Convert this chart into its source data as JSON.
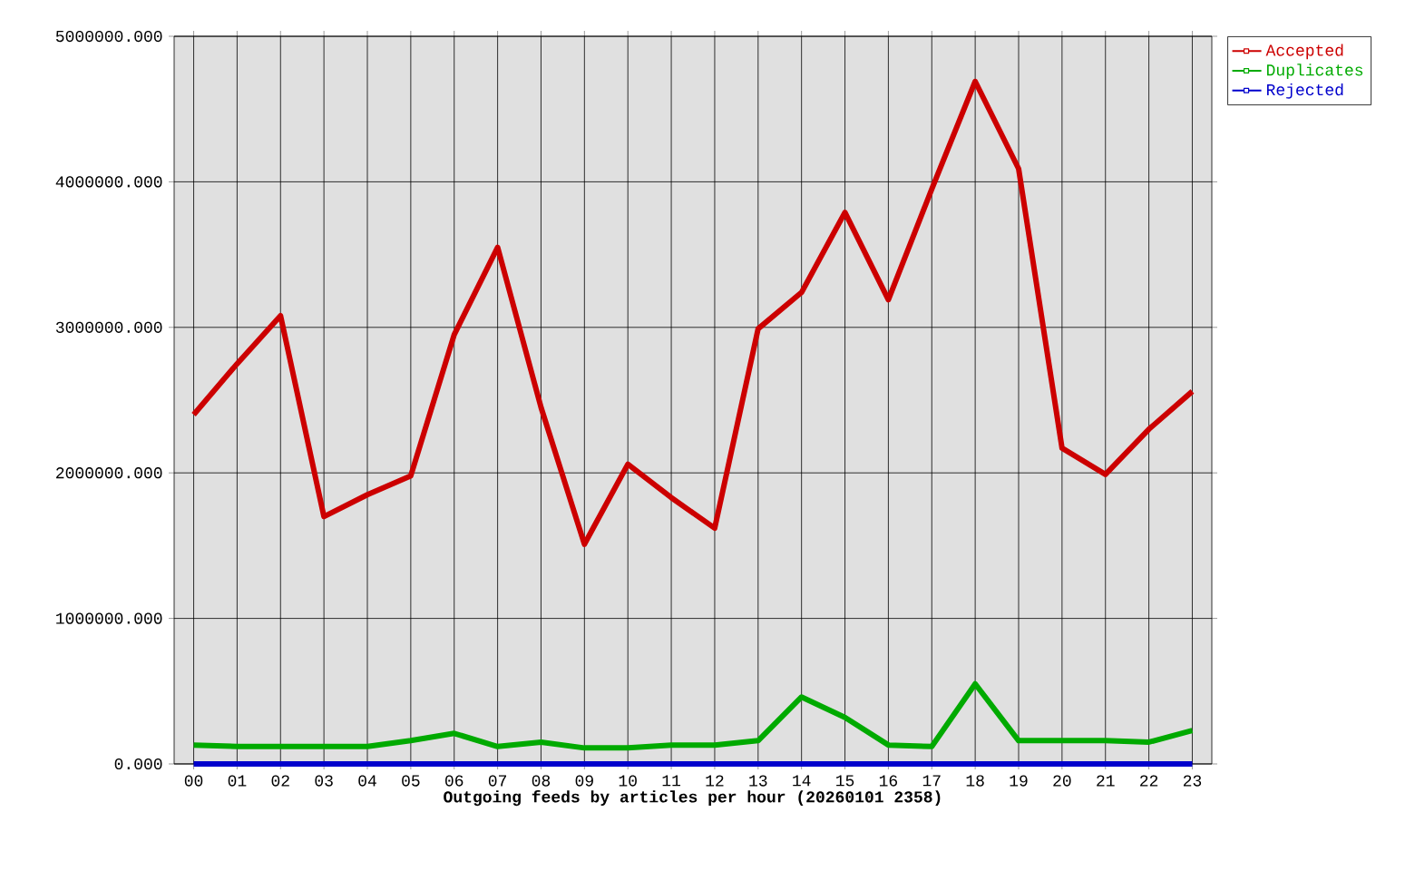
{
  "chart_data": {
    "type": "line",
    "xlabel": "Outgoing feeds by articles per hour (20260101 2358)",
    "categories": [
      "00",
      "01",
      "02",
      "03",
      "04",
      "05",
      "06",
      "07",
      "08",
      "09",
      "10",
      "11",
      "12",
      "13",
      "14",
      "15",
      "16",
      "17",
      "18",
      "19",
      "20",
      "21",
      "22",
      "23"
    ],
    "series": [
      {
        "name": "Accepted",
        "color": "#cc0000",
        "values": [
          2400000,
          2750000,
          3080000,
          1700000,
          1850000,
          1980000,
          2950000,
          3550000,
          2450000,
          1510000,
          2060000,
          1830000,
          1620000,
          2990000,
          3240000,
          3790000,
          3190000,
          3950000,
          4690000,
          4090000,
          2170000,
          1990000,
          2300000,
          2560000
        ]
      },
      {
        "name": "Duplicates",
        "color": "#00aa00",
        "values": [
          130000,
          120000,
          120000,
          120000,
          120000,
          160000,
          210000,
          120000,
          150000,
          110000,
          110000,
          130000,
          130000,
          160000,
          460000,
          320000,
          130000,
          120000,
          550000,
          160000,
          160000,
          160000,
          150000,
          230000
        ]
      },
      {
        "name": "Rejected",
        "color": "#0000cc",
        "values": [
          0,
          0,
          0,
          0,
          0,
          0,
          0,
          0,
          0,
          0,
          0,
          0,
          0,
          0,
          0,
          0,
          0,
          0,
          0,
          0,
          0,
          0,
          0,
          0
        ]
      }
    ],
    "ylim": [
      0,
      5000000
    ],
    "yticks": [
      {
        "value": 0,
        "label": "0.000"
      },
      {
        "value": 1000000,
        "label": "1000000.000"
      },
      {
        "value": 2000000,
        "label": "2000000.000"
      },
      {
        "value": 3000000,
        "label": "3000000.000"
      },
      {
        "value": 4000000,
        "label": "4000000.000"
      },
      {
        "value": 5000000,
        "label": "5000000.000"
      }
    ],
    "grid": true,
    "legend": "top right"
  }
}
